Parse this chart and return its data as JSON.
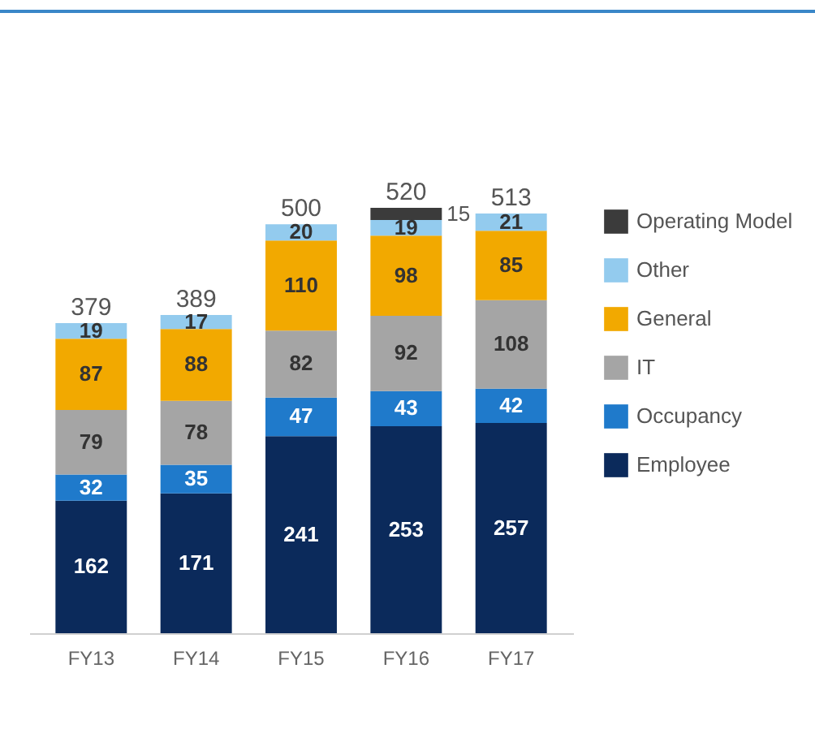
{
  "chart_data": {
    "type": "bar",
    "stacked": true,
    "categories": [
      "FY13",
      "FY14",
      "FY15",
      "FY16",
      "FY17"
    ],
    "series": [
      {
        "name": "Employee",
        "color": "#0b2a5b",
        "values": [
          162,
          171,
          241,
          253,
          257
        ]
      },
      {
        "name": "Occupancy",
        "color": "#1f7acb",
        "values": [
          32,
          35,
          47,
          43,
          42
        ]
      },
      {
        "name": "IT",
        "color": "#a5a5a5",
        "values": [
          79,
          78,
          82,
          92,
          108
        ]
      },
      {
        "name": "General",
        "color": "#f2a900",
        "values": [
          87,
          88,
          110,
          98,
          85
        ]
      },
      {
        "name": "Other",
        "color": "#93cbee",
        "values": [
          19,
          17,
          20,
          19,
          21
        ]
      },
      {
        "name": "Operating Model",
        "color": "#3b3b3b",
        "values": [
          null,
          null,
          null,
          15,
          null
        ]
      }
    ],
    "totals": [
      "379",
      "389",
      "500",
      "520",
      "513"
    ],
    "data_labels": true,
    "legend": "right",
    "grid": false
  }
}
